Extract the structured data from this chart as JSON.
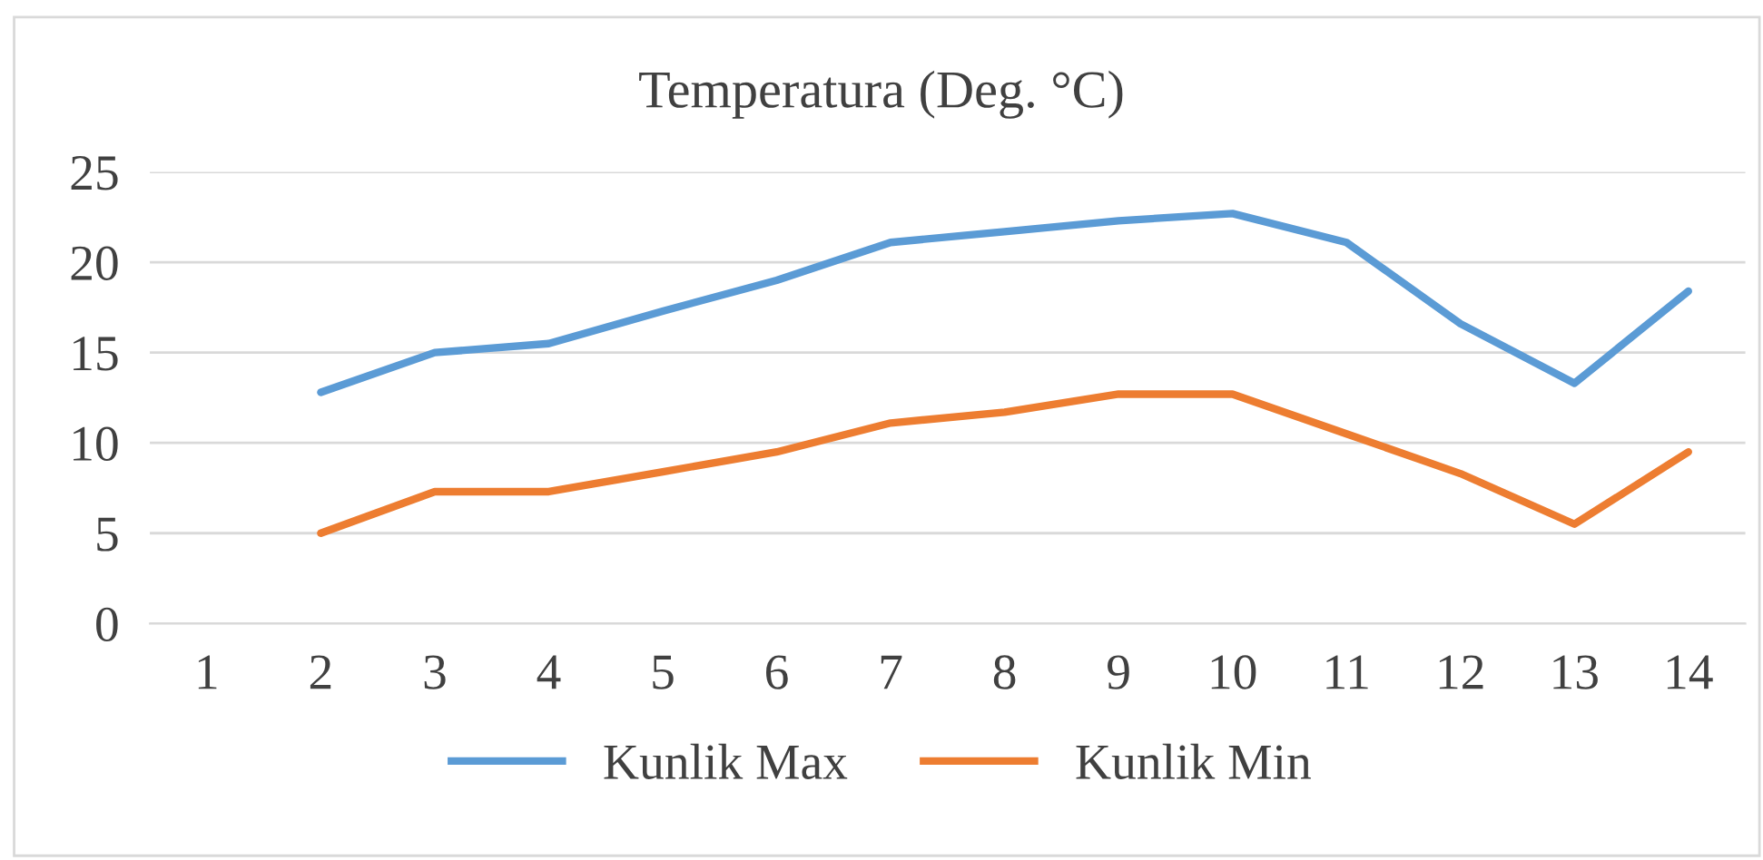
{
  "chart_data": {
    "type": "line",
    "title": "Temperatura (Deg. °C)",
    "categories": [
      "1",
      "2",
      "3",
      "4",
      "5",
      "6",
      "7",
      "8",
      "9",
      "10",
      "11",
      "12",
      "13",
      "14"
    ],
    "series": [
      {
        "name": "Kunlik Max",
        "color": "#5b9bd5",
        "values": [
          null,
          12.8,
          15.0,
          15.5,
          17.3,
          19.0,
          21.1,
          21.7,
          22.3,
          22.7,
          21.1,
          16.6,
          13.3,
          18.4
        ]
      },
      {
        "name": "Kunlik Min",
        "color": "#ed7d31",
        "values": [
          null,
          5.0,
          7.3,
          7.3,
          8.4,
          9.5,
          11.1,
          11.7,
          12.7,
          12.7,
          10.5,
          8.3,
          5.5,
          9.5
        ]
      }
    ],
    "ylim": [
      0,
      25
    ],
    "yticks": [
      0,
      5,
      10,
      15,
      20,
      25
    ],
    "grid": "y",
    "legend": "bottom",
    "marker": "none",
    "line_style": "solid"
  }
}
